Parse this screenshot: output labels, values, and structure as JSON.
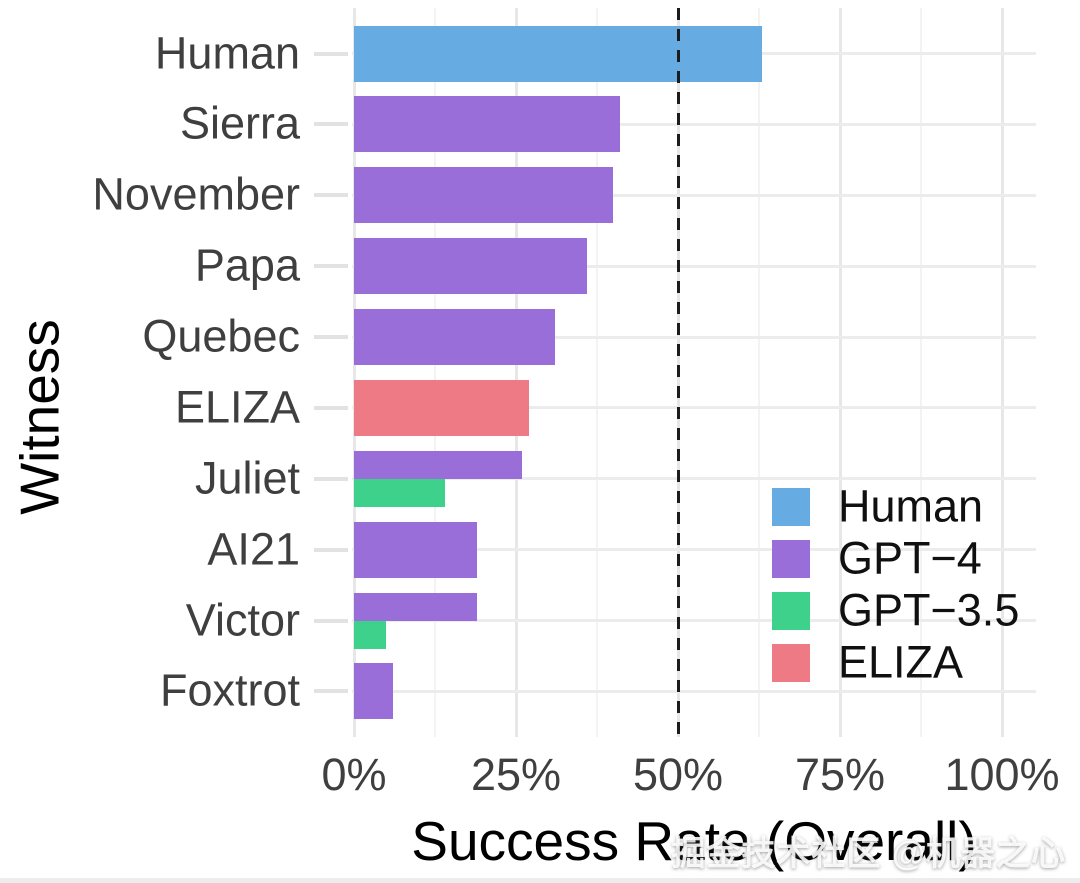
{
  "chart_data": {
    "type": "bar",
    "orientation": "horizontal",
    "xlabel": "Success Rate (Overall)",
    "ylabel": "Witness",
    "xlim": [
      0,
      100
    ],
    "x_ticks": [
      0,
      25,
      50,
      75,
      100
    ],
    "x_tick_labels": [
      "0%",
      "25%",
      "50%",
      "75%",
      "100%"
    ],
    "x_minor_ticks": [
      12.5,
      37.5,
      62.5,
      87.5
    ],
    "reference_line_x": 50,
    "grid": true,
    "legend_position": "inside-right",
    "series_colors": {
      "Human": "#66ABE2",
      "GPT-4": "#9A6ED9",
      "GPT-3.5": "#3DD18C",
      "ELIZA": "#EE7A85"
    },
    "rows": [
      {
        "label": "Human",
        "bars": [
          {
            "series": "Human",
            "value": 63
          }
        ]
      },
      {
        "label": "Sierra",
        "bars": [
          {
            "series": "GPT-4",
            "value": 41
          }
        ]
      },
      {
        "label": "November",
        "bars": [
          {
            "series": "GPT-4",
            "value": 40
          }
        ]
      },
      {
        "label": "Papa",
        "bars": [
          {
            "series": "GPT-4",
            "value": 36
          }
        ]
      },
      {
        "label": "Quebec",
        "bars": [
          {
            "series": "GPT-4",
            "value": 31
          }
        ]
      },
      {
        "label": "ELIZA",
        "bars": [
          {
            "series": "ELIZA",
            "value": 27
          }
        ]
      },
      {
        "label": "Juliet",
        "bars": [
          {
            "series": "GPT-4",
            "value": 26
          },
          {
            "series": "GPT-3.5",
            "value": 14
          }
        ]
      },
      {
        "label": "AI21",
        "bars": [
          {
            "series": "GPT-4",
            "value": 19
          }
        ]
      },
      {
        "label": "Victor",
        "bars": [
          {
            "series": "GPT-4",
            "value": 19
          },
          {
            "series": "GPT-3.5",
            "value": 5
          }
        ]
      },
      {
        "label": "Foxtrot",
        "bars": [
          {
            "series": "GPT-4",
            "value": 6
          }
        ]
      }
    ],
    "legend": [
      {
        "label": "Human",
        "color": "#66ABE2"
      },
      {
        "label": "GPT−4",
        "color": "#9A6ED9"
      },
      {
        "label": "GPT−3.5",
        "color": "#3DD18C"
      },
      {
        "label": "ELIZA",
        "color": "#EE7A85"
      }
    ]
  },
  "watermark": "掘金技术社区 @机器之心"
}
